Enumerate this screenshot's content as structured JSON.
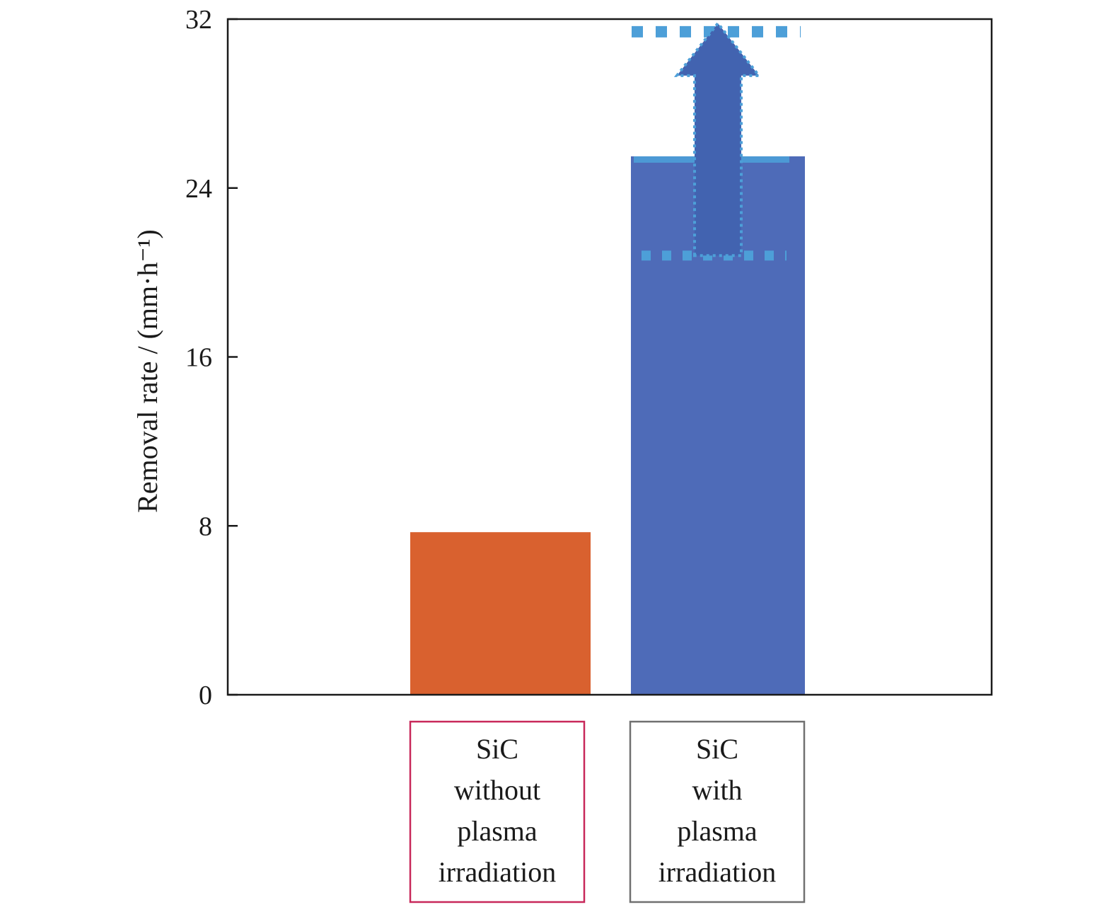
{
  "chart_data": {
    "type": "bar",
    "categories": [
      [
        "SiC",
        "without",
        "plasma",
        "irradiation"
      ],
      [
        "SiC",
        "with",
        "plasma",
        "irradiation"
      ]
    ],
    "values": [
      7.7,
      25.5
    ],
    "ylabel": "Removal rate / (mm·h⁻¹)",
    "ylim": [
      0,
      32
    ],
    "yticks": [
      0,
      8,
      16,
      24,
      32
    ],
    "grid": false,
    "colors": {
      "bar_without": "#d9612f",
      "bar_with": "#4e6bb8",
      "arrow": "#4263b0",
      "dotted": "#4d9fd8",
      "label_box_without": "#c8285a",
      "label_box_with": "#707070",
      "axis": "#1a1a1a"
    },
    "annotation": {
      "type": "range-arrow",
      "category_index": 1,
      "from": 20.8,
      "to": 31.4
    }
  }
}
